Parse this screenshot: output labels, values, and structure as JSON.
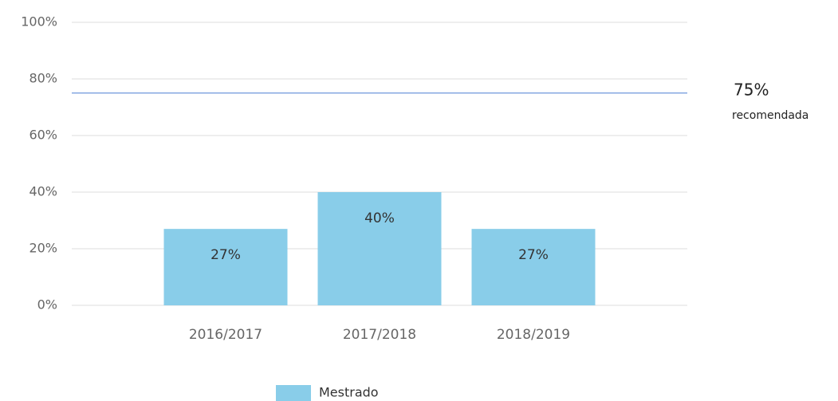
{
  "chart_data": {
    "type": "bar",
    "categories": [
      "2016/2017",
      "2017/2018",
      "2018/2019"
    ],
    "series": [
      {
        "name": "Mestrado",
        "color": "#89cde9",
        "values": [
          27,
          40,
          27
        ],
        "value_labels": [
          "27%",
          "40%",
          "27%"
        ]
      }
    ],
    "ylim": [
      0,
      100
    ],
    "yticks": [
      {
        "value": 0,
        "label": "0%"
      },
      {
        "value": 20,
        "label": "20%"
      },
      {
        "value": 40,
        "label": "40%"
      },
      {
        "value": 60,
        "label": "60%"
      },
      {
        "value": 80,
        "label": "80%"
      },
      {
        "value": 100,
        "label": "100%"
      }
    ],
    "grid": true,
    "reference_line": {
      "value": 75,
      "label": "75%",
      "text": "recomendada",
      "color": "#4a7fd4"
    },
    "legend": "bottom"
  }
}
